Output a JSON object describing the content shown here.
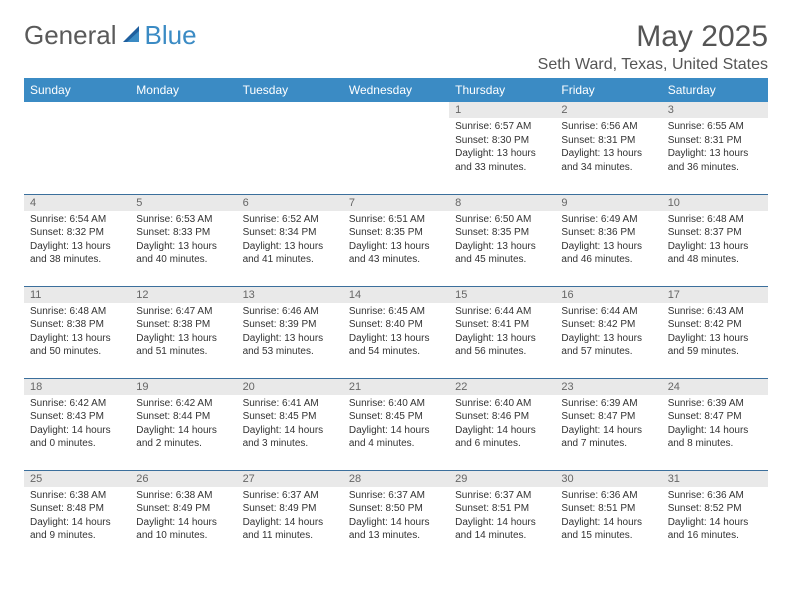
{
  "brand": {
    "word1": "General",
    "word2": "Blue"
  },
  "title": "May 2025",
  "location": "Seth Ward, Texas, United States",
  "colors": {
    "header_bg": "#3b8bc4",
    "header_text": "#ffffff",
    "daynum_bg": "#e9e9e9",
    "daynum_text": "#666666",
    "body_text": "#333333",
    "rule": "#3b6f9c",
    "title_text": "#555555"
  },
  "weekdays": [
    "Sunday",
    "Monday",
    "Tuesday",
    "Wednesday",
    "Thursday",
    "Friday",
    "Saturday"
  ],
  "weeks": [
    [
      {
        "n": "",
        "sr": "",
        "ss": "",
        "dl": ""
      },
      {
        "n": "",
        "sr": "",
        "ss": "",
        "dl": ""
      },
      {
        "n": "",
        "sr": "",
        "ss": "",
        "dl": ""
      },
      {
        "n": "",
        "sr": "",
        "ss": "",
        "dl": ""
      },
      {
        "n": "1",
        "sr": "Sunrise: 6:57 AM",
        "ss": "Sunset: 8:30 PM",
        "dl": "Daylight: 13 hours and 33 minutes."
      },
      {
        "n": "2",
        "sr": "Sunrise: 6:56 AM",
        "ss": "Sunset: 8:31 PM",
        "dl": "Daylight: 13 hours and 34 minutes."
      },
      {
        "n": "3",
        "sr": "Sunrise: 6:55 AM",
        "ss": "Sunset: 8:31 PM",
        "dl": "Daylight: 13 hours and 36 minutes."
      }
    ],
    [
      {
        "n": "4",
        "sr": "Sunrise: 6:54 AM",
        "ss": "Sunset: 8:32 PM",
        "dl": "Daylight: 13 hours and 38 minutes."
      },
      {
        "n": "5",
        "sr": "Sunrise: 6:53 AM",
        "ss": "Sunset: 8:33 PM",
        "dl": "Daylight: 13 hours and 40 minutes."
      },
      {
        "n": "6",
        "sr": "Sunrise: 6:52 AM",
        "ss": "Sunset: 8:34 PM",
        "dl": "Daylight: 13 hours and 41 minutes."
      },
      {
        "n": "7",
        "sr": "Sunrise: 6:51 AM",
        "ss": "Sunset: 8:35 PM",
        "dl": "Daylight: 13 hours and 43 minutes."
      },
      {
        "n": "8",
        "sr": "Sunrise: 6:50 AM",
        "ss": "Sunset: 8:35 PM",
        "dl": "Daylight: 13 hours and 45 minutes."
      },
      {
        "n": "9",
        "sr": "Sunrise: 6:49 AM",
        "ss": "Sunset: 8:36 PM",
        "dl": "Daylight: 13 hours and 46 minutes."
      },
      {
        "n": "10",
        "sr": "Sunrise: 6:48 AM",
        "ss": "Sunset: 8:37 PM",
        "dl": "Daylight: 13 hours and 48 minutes."
      }
    ],
    [
      {
        "n": "11",
        "sr": "Sunrise: 6:48 AM",
        "ss": "Sunset: 8:38 PM",
        "dl": "Daylight: 13 hours and 50 minutes."
      },
      {
        "n": "12",
        "sr": "Sunrise: 6:47 AM",
        "ss": "Sunset: 8:38 PM",
        "dl": "Daylight: 13 hours and 51 minutes."
      },
      {
        "n": "13",
        "sr": "Sunrise: 6:46 AM",
        "ss": "Sunset: 8:39 PM",
        "dl": "Daylight: 13 hours and 53 minutes."
      },
      {
        "n": "14",
        "sr": "Sunrise: 6:45 AM",
        "ss": "Sunset: 8:40 PM",
        "dl": "Daylight: 13 hours and 54 minutes."
      },
      {
        "n": "15",
        "sr": "Sunrise: 6:44 AM",
        "ss": "Sunset: 8:41 PM",
        "dl": "Daylight: 13 hours and 56 minutes."
      },
      {
        "n": "16",
        "sr": "Sunrise: 6:44 AM",
        "ss": "Sunset: 8:42 PM",
        "dl": "Daylight: 13 hours and 57 minutes."
      },
      {
        "n": "17",
        "sr": "Sunrise: 6:43 AM",
        "ss": "Sunset: 8:42 PM",
        "dl": "Daylight: 13 hours and 59 minutes."
      }
    ],
    [
      {
        "n": "18",
        "sr": "Sunrise: 6:42 AM",
        "ss": "Sunset: 8:43 PM",
        "dl": "Daylight: 14 hours and 0 minutes."
      },
      {
        "n": "19",
        "sr": "Sunrise: 6:42 AM",
        "ss": "Sunset: 8:44 PM",
        "dl": "Daylight: 14 hours and 2 minutes."
      },
      {
        "n": "20",
        "sr": "Sunrise: 6:41 AM",
        "ss": "Sunset: 8:45 PM",
        "dl": "Daylight: 14 hours and 3 minutes."
      },
      {
        "n": "21",
        "sr": "Sunrise: 6:40 AM",
        "ss": "Sunset: 8:45 PM",
        "dl": "Daylight: 14 hours and 4 minutes."
      },
      {
        "n": "22",
        "sr": "Sunrise: 6:40 AM",
        "ss": "Sunset: 8:46 PM",
        "dl": "Daylight: 14 hours and 6 minutes."
      },
      {
        "n": "23",
        "sr": "Sunrise: 6:39 AM",
        "ss": "Sunset: 8:47 PM",
        "dl": "Daylight: 14 hours and 7 minutes."
      },
      {
        "n": "24",
        "sr": "Sunrise: 6:39 AM",
        "ss": "Sunset: 8:47 PM",
        "dl": "Daylight: 14 hours and 8 minutes."
      }
    ],
    [
      {
        "n": "25",
        "sr": "Sunrise: 6:38 AM",
        "ss": "Sunset: 8:48 PM",
        "dl": "Daylight: 14 hours and 9 minutes."
      },
      {
        "n": "26",
        "sr": "Sunrise: 6:38 AM",
        "ss": "Sunset: 8:49 PM",
        "dl": "Daylight: 14 hours and 10 minutes."
      },
      {
        "n": "27",
        "sr": "Sunrise: 6:37 AM",
        "ss": "Sunset: 8:49 PM",
        "dl": "Daylight: 14 hours and 11 minutes."
      },
      {
        "n": "28",
        "sr": "Sunrise: 6:37 AM",
        "ss": "Sunset: 8:50 PM",
        "dl": "Daylight: 14 hours and 13 minutes."
      },
      {
        "n": "29",
        "sr": "Sunrise: 6:37 AM",
        "ss": "Sunset: 8:51 PM",
        "dl": "Daylight: 14 hours and 14 minutes."
      },
      {
        "n": "30",
        "sr": "Sunrise: 6:36 AM",
        "ss": "Sunset: 8:51 PM",
        "dl": "Daylight: 14 hours and 15 minutes."
      },
      {
        "n": "31",
        "sr": "Sunrise: 6:36 AM",
        "ss": "Sunset: 8:52 PM",
        "dl": "Daylight: 14 hours and 16 minutes."
      }
    ]
  ]
}
